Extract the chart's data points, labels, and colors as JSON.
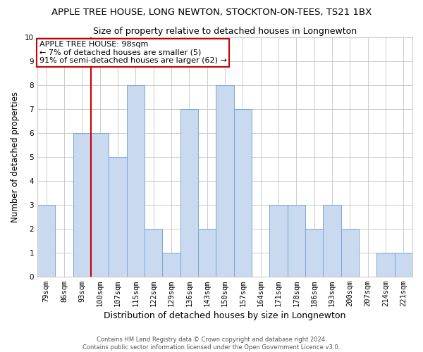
{
  "title": "APPLE TREE HOUSE, LONG NEWTON, STOCKTON-ON-TEES, TS21 1BX",
  "subtitle": "Size of property relative to detached houses in Longnewton",
  "xlabel": "Distribution of detached houses by size in Longnewton",
  "ylabel": "Number of detached properties",
  "footnote": "Contains HM Land Registry data © Crown copyright and database right 2024.\nContains public sector information licensed under the Open Government Licence v3.0.",
  "categories": [
    "79sqm",
    "86sqm",
    "93sqm",
    "100sqm",
    "107sqm",
    "115sqm",
    "122sqm",
    "129sqm",
    "136sqm",
    "143sqm",
    "150sqm",
    "157sqm",
    "164sqm",
    "171sqm",
    "178sqm",
    "186sqm",
    "193sqm",
    "200sqm",
    "207sqm",
    "214sqm",
    "221sqm"
  ],
  "values": [
    3,
    0,
    6,
    6,
    5,
    8,
    2,
    1,
    7,
    2,
    8,
    7,
    0,
    3,
    3,
    2,
    3,
    2,
    0,
    1,
    1
  ],
  "bar_color": "#c8d9f0",
  "bar_edge_color": "#7aa8d4",
  "red_line_x": 2.5,
  "annotation_line1": "APPLE TREE HOUSE: 98sqm",
  "annotation_line2": "← 7% of detached houses are smaller (5)",
  "annotation_line3": "91% of semi-detached houses are larger (62) →",
  "annotation_box_facecolor": "#ffffff",
  "annotation_box_edge_color": "#cc0000",
  "ylim": [
    0,
    10
  ],
  "yticks": [
    0,
    1,
    2,
    3,
    4,
    5,
    6,
    7,
    8,
    9,
    10
  ],
  "grid_color": "#cccccc",
  "background_color": "#ffffff",
  "title_fontsize": 9.5,
  "subtitle_fontsize": 9,
  "xlabel_fontsize": 9,
  "ylabel_fontsize": 8.5,
  "tick_fontsize": 7.5,
  "annotation_fontsize": 8,
  "footnote_fontsize": 6
}
